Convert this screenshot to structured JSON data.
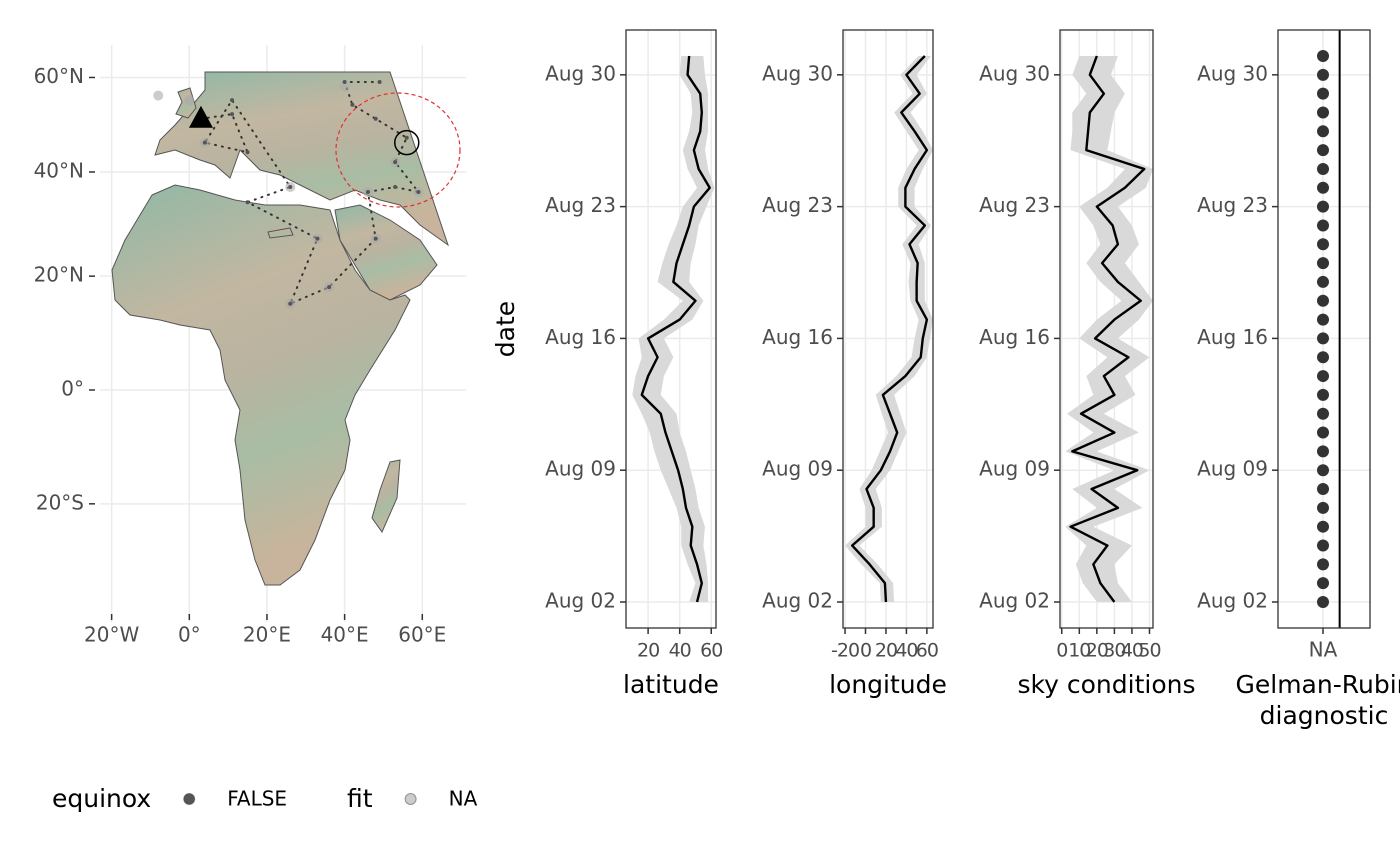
{
  "chart_data": [
    {
      "type": "map",
      "xlim": [
        -23,
        71
      ],
      "ylim": [
        -40,
        66
      ],
      "xticks": [
        {
          "value": -20,
          "label": "20°W"
        },
        {
          "value": 0,
          "label": "0°"
        },
        {
          "value": 20,
          "label": "20°E"
        },
        {
          "value": 40,
          "label": "40°E"
        },
        {
          "value": 60,
          "label": "60°E"
        }
      ],
      "yticks": [
        {
          "value": 60,
          "label": "60°N"
        },
        {
          "value": 40,
          "label": "40°N"
        },
        {
          "value": 20,
          "label": "20°N"
        },
        {
          "value": 0,
          "label": "0°"
        },
        {
          "value": -20,
          "label": "20°S"
        }
      ],
      "grid": true,
      "series": [
        {
          "legend_title": "equinox",
          "name": "FALSE",
          "color": "#555555",
          "x": [
            3,
            11,
            15,
            4,
            11,
            26,
            15,
            33,
            26,
            36,
            48,
            46,
            53,
            59,
            53,
            56,
            48,
            42,
            40,
            49
          ],
          "y": [
            51,
            52,
            44,
            46,
            55,
            37,
            34,
            27,
            15,
            18,
            27,
            36,
            37,
            36,
            42,
            47,
            51,
            54,
            59,
            59
          ]
        },
        {
          "legend_title": "fit",
          "name": "NA",
          "color": "#aaaaaa",
          "x": [
            -8,
            0,
            40,
            26,
            4,
            26,
            48,
            46,
            59,
            33,
            36,
            53
          ],
          "y": [
            56,
            55,
            58,
            37,
            46,
            15,
            27,
            36,
            36,
            27,
            18,
            42
          ]
        }
      ],
      "start": {
        "x": 3,
        "y": 51
      },
      "end": {
        "x": 56,
        "y": 46
      }
    },
    {
      "type": "line",
      "xlabel": "latitude",
      "ylabel": "date",
      "categories": [
        "Aug 02",
        null,
        null,
        null,
        null,
        null,
        null,
        "Aug 09",
        null,
        null,
        null,
        null,
        null,
        null,
        "Aug 16",
        null,
        null,
        null,
        null,
        null,
        null,
        "Aug 23",
        null,
        null,
        null,
        null,
        null,
        null,
        "Aug 30",
        null
      ],
      "xlim": [
        6,
        63
      ],
      "xticks": [
        20,
        40,
        60
      ],
      "grid": true,
      "series": [
        {
          "color": "#000000",
          "ribbon_color": "#d9d9d9",
          "values": [
            51,
            54,
            51,
            47,
            48,
            44,
            42,
            39,
            35,
            31,
            28,
            16,
            20,
            26,
            20,
            40,
            50,
            36,
            38,
            42,
            46,
            49,
            59,
            52,
            49,
            53,
            54,
            53,
            45,
            46
          ],
          "lower": [
            46,
            50,
            45,
            41,
            41,
            38,
            33,
            28,
            24,
            21,
            16,
            10,
            12,
            16,
            14,
            30,
            42,
            26,
            29,
            33,
            38,
            42,
            51,
            45,
            42,
            46,
            48,
            47,
            40,
            41
          ],
          "upper": [
            58,
            58,
            57,
            55,
            56,
            52,
            50,
            47,
            44,
            40,
            38,
            28,
            30,
            36,
            30,
            48,
            55,
            46,
            47,
            50,
            52,
            57,
            62,
            58,
            56,
            58,
            58,
            58,
            56,
            55
          ]
        }
      ]
    },
    {
      "type": "line",
      "xlabel": "longitude",
      "categories": [
        "Aug 02",
        null,
        null,
        null,
        null,
        null,
        null,
        "Aug 09",
        null,
        null,
        null,
        null,
        null,
        null,
        "Aug 16",
        null,
        null,
        null,
        null,
        null,
        null,
        "Aug 23",
        null,
        null,
        null,
        null,
        null,
        null,
        "Aug 30",
        null
      ],
      "xlim": [
        -22,
        66
      ],
      "xticks": [
        -20,
        0,
        20,
        40,
        60
      ],
      "grid": true,
      "series": [
        {
          "color": "#000000",
          "ribbon_color": "#d9d9d9",
          "values": [
            20,
            19,
            4,
            -13,
            8,
            8,
            1,
            15,
            24,
            31,
            24,
            17,
            39,
            54,
            56,
            60,
            50,
            50,
            51,
            43,
            58,
            39,
            39,
            48,
            60,
            48,
            35,
            53,
            40,
            58
          ],
          "lower": [
            15,
            14,
            -4,
            -20,
            0,
            0,
            -6,
            6,
            14,
            22,
            16,
            10,
            30,
            45,
            48,
            52,
            44,
            42,
            44,
            36,
            50,
            32,
            32,
            40,
            52,
            40,
            28,
            46,
            34,
            52
          ],
          "upper": [
            28,
            27,
            12,
            -6,
            16,
            16,
            10,
            24,
            32,
            40,
            34,
            28,
            48,
            60,
            63,
            66,
            58,
            58,
            58,
            52,
            64,
            48,
            48,
            56,
            66,
            56,
            44,
            60,
            50,
            64
          ]
        }
      ]
    },
    {
      "type": "line",
      "xlabel": "sky conditions",
      "categories": [
        "Aug 02",
        null,
        null,
        null,
        null,
        null,
        null,
        "Aug 09",
        null,
        null,
        null,
        null,
        null,
        null,
        "Aug 16",
        null,
        null,
        null,
        null,
        null,
        null,
        "Aug 23",
        null,
        null,
        null,
        null,
        null,
        null,
        "Aug 30",
        null
      ],
      "xlim": [
        -1,
        52
      ],
      "xticks": [
        0,
        10,
        20,
        30,
        40,
        50
      ],
      "grid": true,
      "series": [
        {
          "color": "#000000",
          "ribbon_color": "#d9d9d9",
          "values": [
            30,
            22,
            18,
            26,
            5,
            32,
            17,
            43,
            6,
            30,
            11,
            30,
            24,
            38,
            19,
            30,
            45,
            32,
            23,
            32,
            29,
            20,
            36,
            47,
            14,
            15,
            16,
            24,
            16,
            20
          ],
          "lower": [
            20,
            12,
            8,
            14,
            2,
            20,
            6,
            30,
            2,
            18,
            3,
            18,
            14,
            26,
            10,
            20,
            34,
            22,
            14,
            22,
            18,
            10,
            26,
            36,
            5,
            6,
            6,
            14,
            6,
            10
          ],
          "upper": [
            40,
            32,
            30,
            40,
            18,
            46,
            30,
            50,
            20,
            44,
            24,
            42,
            36,
            50,
            32,
            44,
            52,
            44,
            36,
            44,
            40,
            32,
            48,
            52,
            26,
            28,
            30,
            36,
            28,
            32
          ]
        }
      ]
    },
    {
      "type": "dot",
      "xlabel": [
        "Gelman-Rubin",
        "diagnostic"
      ],
      "categories": [
        "Aug 02",
        null,
        null,
        null,
        null,
        null,
        null,
        "Aug 09",
        null,
        null,
        null,
        null,
        null,
        null,
        "Aug 16",
        null,
        null,
        null,
        null,
        null,
        null,
        "Aug 23",
        null,
        null,
        null,
        null,
        null,
        null,
        "Aug 30",
        null
      ],
      "xcategories": [
        "NA"
      ],
      "grid": true,
      "color": "#333333",
      "values": [
        null,
        null,
        null,
        null,
        null,
        null,
        null,
        null,
        null,
        null,
        null,
        null,
        null,
        null,
        null,
        null,
        null,
        null,
        null,
        null,
        null,
        null,
        null,
        null,
        null,
        null,
        null,
        null,
        null,
        null
      ]
    }
  ]
}
